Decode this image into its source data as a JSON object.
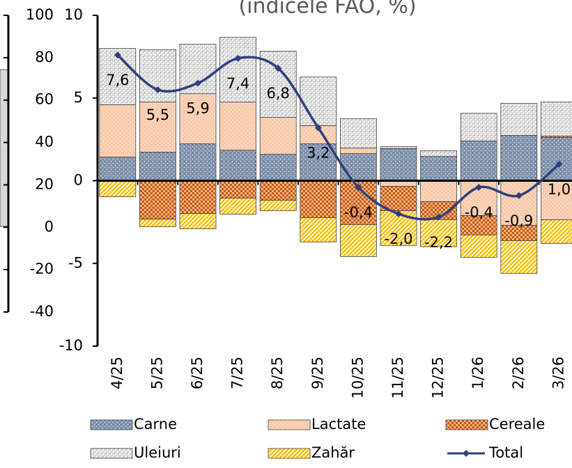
{
  "chart_data": {
    "type": "bar",
    "subtitle": "(indicele FAO, %)",
    "categories": [
      "4/25",
      "5/25",
      "6/25",
      "7/25",
      "8/25",
      "9/25",
      "10/25",
      "11/25",
      "12/25",
      "1/26",
      "2/26",
      "3/26"
    ],
    "series": [
      {
        "name": "Carne",
        "color": "#8497b0",
        "values": [
          1.43,
          1.73,
          2.23,
          1.85,
          1.6,
          2.23,
          1.64,
          1.94,
          1.47,
          2.4,
          2.74,
          2.61
        ]
      },
      {
        "name": "Lactate",
        "color": "#f8cbad",
        "values": [
          3.16,
          3.03,
          3.03,
          2.91,
          2.23,
          1.1,
          0.34,
          -0.34,
          -1.26,
          -2.1,
          -2.69,
          -2.36
        ]
      },
      {
        "name": "Cereale",
        "color": "#f4b183",
        "values": [
          0,
          -2.32,
          -1.98,
          -1.05,
          -1.18,
          -2.23,
          -2.65,
          -1.47,
          -1.09,
          -1.18,
          -0.93,
          0.08
        ]
      },
      {
        "name": "Uleiuri",
        "color": "#d9d9d9",
        "values": [
          3.41,
          3.16,
          3.0,
          3.91,
          4.0,
          2.94,
          1.77,
          0.12,
          0.34,
          1.68,
          1.94,
          2.07
        ]
      },
      {
        "name": "Zahăr",
        "color": "#ffc000",
        "values": [
          -0.97,
          -0.46,
          -0.93,
          -0.97,
          -0.63,
          -1.47,
          -1.94,
          -2.1,
          -1.64,
          -1.35,
          -1.98,
          -1.43
        ]
      },
      {
        "name": "Total",
        "color": "#2f3f7f",
        "type": "line",
        "values": [
          7.6,
          5.5,
          5.9,
          7.4,
          6.8,
          3.2,
          -0.4,
          -2.0,
          -2.2,
          -0.4,
          -0.9,
          1.0
        ],
        "value_labels": [
          "7,6",
          "5,5",
          "5,9",
          "7,4",
          "6,8",
          "3,2",
          "-0,4",
          "-2,0",
          "-2,2",
          "-0,4",
          "-0,9",
          "1,0"
        ]
      }
    ],
    "ylim": [
      -10,
      10
    ],
    "yticks": [
      -10,
      -5,
      0,
      5,
      10
    ],
    "y2lim": [
      -40,
      100
    ],
    "y2ticks": [
      -40,
      -20,
      0,
      20,
      40,
      60,
      80,
      100
    ]
  }
}
